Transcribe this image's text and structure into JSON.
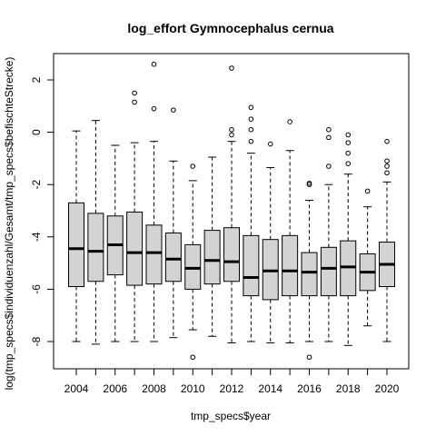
{
  "chart_data": {
    "type": "boxplot",
    "title": "log_effort Gymnocephalus cernua",
    "xlabel": "tmp_specs$year",
    "ylabel": "log(tmp_specs$individuenzahl/Gesamt/tmp_specs$befischteStrecke)",
    "ylim": [
      -9,
      3
    ],
    "y_ticks": [
      -8,
      -6,
      -4,
      -2,
      0,
      2
    ],
    "y_tick_labels": [
      "-8",
      "-6",
      "-4",
      "-2",
      "0",
      "2"
    ],
    "x_tick_labels": [
      "2004",
      "2006",
      "2008",
      "2010",
      "2012",
      "2014",
      "2016",
      "2018",
      "2020"
    ],
    "categories": [
      "2004",
      "2005",
      "2006",
      "2007",
      "2008",
      "2009",
      "2010",
      "2011",
      "2012",
      "2013",
      "2014",
      "2015",
      "2016",
      "2017",
      "2018",
      "2019",
      "2020"
    ],
    "box_fill": "#d3d3d3",
    "boxes": [
      {
        "year": "2004",
        "min": -8.0,
        "q1": -5.9,
        "median": -4.45,
        "q3": -2.7,
        "max": 0.05,
        "outliers": []
      },
      {
        "year": "2005",
        "min": -8.1,
        "q1": -5.7,
        "median": -4.55,
        "q3": -3.1,
        "max": 0.45,
        "outliers": []
      },
      {
        "year": "2006",
        "min": -8.0,
        "q1": -5.45,
        "median": -4.3,
        "q3": -3.2,
        "max": -0.5,
        "outliers": []
      },
      {
        "year": "2007",
        "min": -8.0,
        "q1": -5.85,
        "median": -4.6,
        "q3": -3.05,
        "max": -0.4,
        "outliers": [
          1.5,
          1.15
        ]
      },
      {
        "year": "2008",
        "min": -8.0,
        "q1": -5.8,
        "median": -4.6,
        "q3": -3.55,
        "max": -0.35,
        "outliers": [
          2.6,
          0.9
        ]
      },
      {
        "year": "2009",
        "min": -7.85,
        "q1": -5.7,
        "median": -4.85,
        "q3": -3.85,
        "max": -1.1,
        "outliers": [
          0.85
        ]
      },
      {
        "year": "2010",
        "min": -7.55,
        "q1": -6.0,
        "median": -5.2,
        "q3": -4.3,
        "max": -1.85,
        "outliers": [
          -1.3,
          -8.6
        ]
      },
      {
        "year": "2011",
        "min": -7.8,
        "q1": -5.8,
        "median": -4.9,
        "q3": -3.75,
        "max": -0.95,
        "outliers": []
      },
      {
        "year": "2012",
        "min": -8.05,
        "q1": -5.7,
        "median": -4.95,
        "q3": -3.65,
        "max": -0.35,
        "outliers": [
          2.45,
          0.1,
          -0.1
        ]
      },
      {
        "year": "2013",
        "min": -8.0,
        "q1": -6.25,
        "median": -5.55,
        "q3": -3.95,
        "max": -0.8,
        "outliers": [
          0.95,
          0.5,
          0.1,
          -0.35
        ]
      },
      {
        "year": "2014",
        "min": -8.05,
        "q1": -6.4,
        "median": -5.3,
        "q3": -4.1,
        "max": -1.35,
        "outliers": [
          -0.45
        ]
      },
      {
        "year": "2015",
        "min": -8.05,
        "q1": -6.25,
        "median": -5.3,
        "q3": -3.95,
        "max": -0.7,
        "outliers": [
          0.4
        ]
      },
      {
        "year": "2016",
        "min": -8.0,
        "q1": -6.25,
        "median": -5.35,
        "q3": -4.6,
        "max": -2.6,
        "outliers": [
          -1.95,
          -2.0,
          -8.6
        ]
      },
      {
        "year": "2017",
        "min": -8.0,
        "q1": -6.25,
        "median": -5.2,
        "q3": -4.4,
        "max": -2.0,
        "outliers": [
          0.1,
          -0.2,
          -1.3
        ]
      },
      {
        "year": "2018",
        "min": -8.15,
        "q1": -6.25,
        "median": -5.15,
        "q3": -4.15,
        "max": -1.6,
        "outliers": [
          -0.1,
          -0.4,
          -0.8,
          -1.2
        ]
      },
      {
        "year": "2019",
        "min": -7.4,
        "q1": -6.05,
        "median": -5.35,
        "q3": -4.65,
        "max": -2.85,
        "outliers": [
          -2.25
        ]
      },
      {
        "year": "2020",
        "min": -8.0,
        "q1": -5.9,
        "median": -5.05,
        "q3": -4.2,
        "max": -1.9,
        "outliers": [
          -0.35,
          -1.1,
          -1.3,
          -1.55
        ]
      }
    ]
  }
}
